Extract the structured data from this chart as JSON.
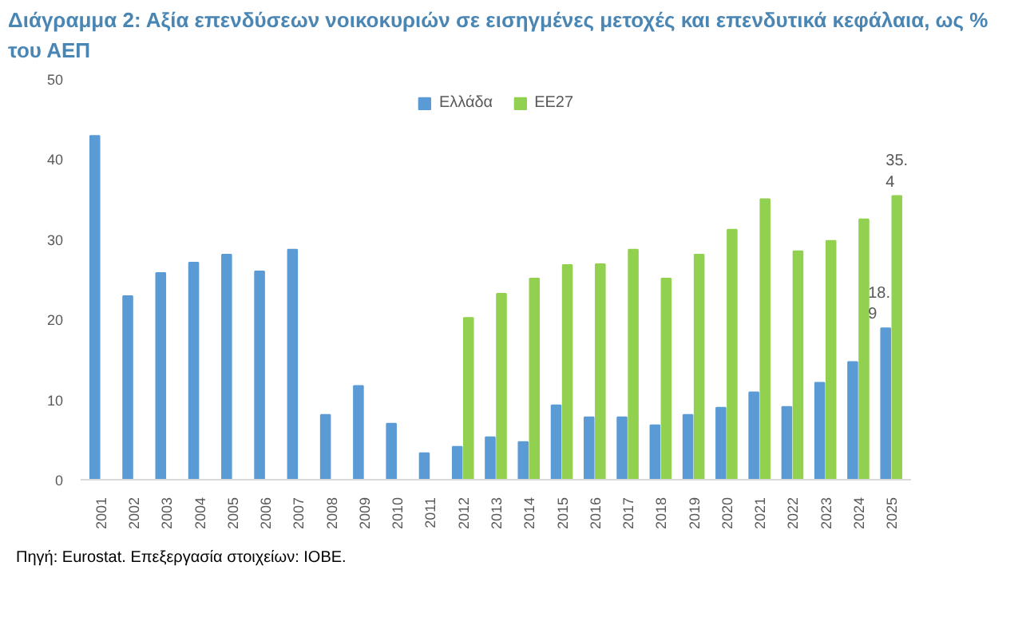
{
  "chart_data": {
    "type": "bar",
    "title": "Διάγραμμα 2: Αξία επενδύσεων νοικοκυριών σε εισηγμένες μετοχές και επενδυτικά κεφάλαια, ως % του ΑΕΠ",
    "categories": [
      "2001",
      "2002",
      "2003",
      "2004",
      "2005",
      "2006",
      "2007",
      "2008",
      "2009",
      "2010",
      "2011",
      "2012",
      "2013",
      "2014",
      "2015",
      "2016",
      "2017",
      "2018",
      "2019",
      "2020",
      "2021",
      "2022",
      "2023",
      "2024",
      "2025"
    ],
    "series": [
      {
        "name": "Ελλάδα",
        "color": "#5b9bd5",
        "values": [
          42.9,
          22.9,
          25.8,
          27.1,
          28.1,
          26.0,
          28.7,
          8.1,
          11.7,
          7.0,
          3.3,
          4.1,
          5.3,
          4.7,
          9.3,
          7.8,
          7.8,
          6.8,
          8.1,
          9.0,
          10.9,
          9.1,
          12.1,
          14.7,
          18.9
        ],
        "value_labels": [
          null,
          null,
          null,
          null,
          null,
          null,
          null,
          null,
          null,
          null,
          null,
          null,
          null,
          null,
          null,
          null,
          null,
          null,
          null,
          null,
          null,
          null,
          null,
          null,
          "18.9"
        ]
      },
      {
        "name": "ΕΕ27",
        "color": "#92d050",
        "values": [
          null,
          null,
          null,
          null,
          null,
          null,
          null,
          null,
          null,
          null,
          null,
          20.2,
          23.2,
          25.1,
          26.8,
          26.9,
          28.7,
          25.1,
          28.1,
          31.2,
          35.0,
          28.5,
          29.8,
          32.5,
          35.4
        ],
        "value_labels": [
          null,
          null,
          null,
          null,
          null,
          null,
          null,
          null,
          null,
          null,
          null,
          null,
          null,
          null,
          null,
          null,
          null,
          null,
          null,
          null,
          null,
          null,
          null,
          null,
          "35.4"
        ]
      }
    ],
    "ylim": [
      0,
      50
    ],
    "yticks": [
      0,
      10,
      20,
      30,
      40,
      50
    ],
    "grid": false,
    "legend": "top",
    "annotations": [
      "Πηγή: Eurostat. Επεξεργασία στοιχείων: ΙΟΒΕ."
    ]
  }
}
